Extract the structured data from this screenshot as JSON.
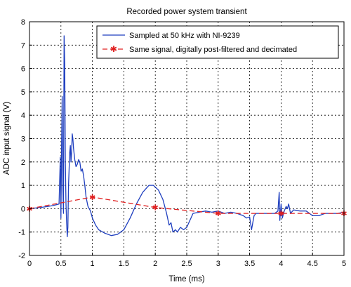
{
  "chart_data": {
    "type": "line",
    "title": "Recorded power system transient",
    "xlabel": "Time (ms)",
    "ylabel": "ADC input signal (V)",
    "xlim": [
      0,
      5
    ],
    "ylim": [
      -2,
      8
    ],
    "xticks": [
      "0",
      "0.5",
      "1",
      "1.5",
      "2",
      "2.5",
      "3",
      "3.5",
      "4",
      "4.5",
      "5"
    ],
    "yticks": [
      "-2",
      "-1",
      "0",
      "1",
      "2",
      "3",
      "4",
      "5",
      "6",
      "7",
      "8"
    ],
    "grid": true,
    "legend_position": "top-right",
    "series": [
      {
        "name": "Sampled at 50 kHz with NI-9239",
        "color": "#1f3fbf",
        "marker": "none",
        "linestyle": "solid",
        "points": [
          [
            0.0,
            0.0
          ],
          [
            0.1,
            0.03
          ],
          [
            0.2,
            0.06
          ],
          [
            0.3,
            0.1
          ],
          [
            0.4,
            0.15
          ],
          [
            0.47,
            0.2
          ],
          [
            0.49,
            2.2
          ],
          [
            0.5,
            -0.4
          ],
          [
            0.51,
            2.6
          ],
          [
            0.52,
            4.8
          ],
          [
            0.53,
            1.0
          ],
          [
            0.54,
            -0.2
          ],
          [
            0.55,
            7.4
          ],
          [
            0.56,
            6.2
          ],
          [
            0.57,
            2.0
          ],
          [
            0.58,
            0.2
          ],
          [
            0.59,
            -0.6
          ],
          [
            0.6,
            -1.2
          ],
          [
            0.61,
            -0.8
          ],
          [
            0.62,
            1.0
          ],
          [
            0.64,
            2.4
          ],
          [
            0.65,
            2.7
          ],
          [
            0.66,
            2.0
          ],
          [
            0.67,
            2.4
          ],
          [
            0.68,
            3.2
          ],
          [
            0.69,
            3.0
          ],
          [
            0.7,
            2.6
          ],
          [
            0.72,
            2.1
          ],
          [
            0.74,
            1.8
          ],
          [
            0.76,
            1.9
          ],
          [
            0.78,
            2.1
          ],
          [
            0.8,
            2.0
          ],
          [
            0.82,
            1.6
          ],
          [
            0.84,
            1.7
          ],
          [
            0.86,
            1.4
          ],
          [
            0.88,
            1.0
          ],
          [
            0.9,
            0.5
          ],
          [
            0.93,
            0.1
          ],
          [
            0.97,
            -0.1
          ],
          [
            1.0,
            -0.4
          ],
          [
            1.05,
            -0.7
          ],
          [
            1.1,
            -0.9
          ],
          [
            1.2,
            -1.05
          ],
          [
            1.3,
            -1.15
          ],
          [
            1.4,
            -1.1
          ],
          [
            1.5,
            -0.9
          ],
          [
            1.6,
            -0.4
          ],
          [
            1.7,
            0.2
          ],
          [
            1.8,
            0.7
          ],
          [
            1.9,
            1.0
          ],
          [
            1.97,
            1.0
          ],
          [
            2.05,
            0.8
          ],
          [
            2.12,
            0.4
          ],
          [
            2.18,
            -0.2
          ],
          [
            2.22,
            -0.7
          ],
          [
            2.25,
            -0.6
          ],
          [
            2.28,
            -1.0
          ],
          [
            2.32,
            -0.9
          ],
          [
            2.35,
            -1.0
          ],
          [
            2.4,
            -0.8
          ],
          [
            2.45,
            -0.9
          ],
          [
            2.5,
            -0.8
          ],
          [
            2.55,
            -0.5
          ],
          [
            2.6,
            -0.2
          ],
          [
            2.7,
            -0.15
          ],
          [
            2.8,
            -0.1
          ],
          [
            2.9,
            -0.15
          ],
          [
            3.0,
            -0.1
          ],
          [
            3.1,
            -0.2
          ],
          [
            3.2,
            -0.15
          ],
          [
            3.3,
            -0.2
          ],
          [
            3.4,
            -0.3
          ],
          [
            3.45,
            -0.4
          ],
          [
            3.5,
            -0.35
          ],
          [
            3.53,
            -0.9
          ],
          [
            3.55,
            -0.6
          ],
          [
            3.57,
            -0.3
          ],
          [
            3.6,
            -0.2
          ],
          [
            3.7,
            -0.2
          ],
          [
            3.8,
            -0.2
          ],
          [
            3.9,
            -0.2
          ],
          [
            3.95,
            -0.1
          ],
          [
            3.97,
            0.7
          ],
          [
            3.98,
            -0.5
          ],
          [
            4.0,
            0.2
          ],
          [
            4.02,
            -0.4
          ],
          [
            4.05,
            -0.1
          ],
          [
            4.08,
            0.1
          ],
          [
            4.1,
            0.0
          ],
          [
            4.12,
            0.2
          ],
          [
            4.15,
            -0.2
          ],
          [
            4.2,
            -0.05
          ],
          [
            4.3,
            -0.1
          ],
          [
            4.4,
            -0.1
          ],
          [
            4.5,
            -0.3
          ],
          [
            4.6,
            -0.3
          ],
          [
            4.7,
            -0.2
          ],
          [
            4.8,
            -0.2
          ],
          [
            4.9,
            -0.2
          ],
          [
            5.0,
            -0.15
          ]
        ]
      },
      {
        "name": "Same signal, digitally post-filtered and decimated",
        "color": "#e02020",
        "marker": "star",
        "linestyle": "dashed",
        "points": [
          [
            0.0,
            0.0
          ],
          [
            1.0,
            0.5
          ],
          [
            2.0,
            0.05
          ],
          [
            3.0,
            -0.2
          ],
          [
            4.0,
            -0.2
          ],
          [
            5.0,
            -0.2
          ]
        ]
      }
    ]
  }
}
